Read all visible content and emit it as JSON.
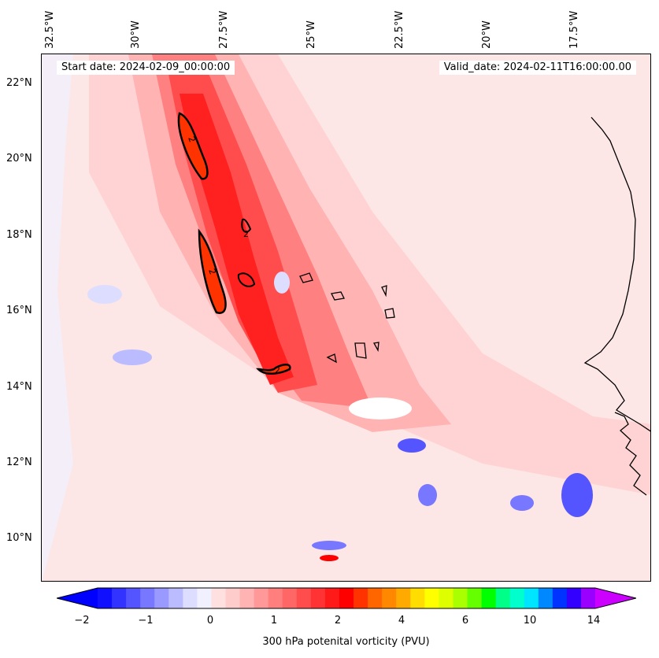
{
  "header": {
    "start_date": "Start date: 2024-02-09_00:00:00",
    "valid_date": "Valid_date: 2024-02-11T16:00:00.00"
  },
  "axes": {
    "lon_labels": [
      "32.5°W",
      "30°W",
      "27.5°W",
      "25°W",
      "22.5°W",
      "20°W",
      "17.5°W"
    ],
    "lat_labels": [
      "22°N",
      "20°N",
      "18°N",
      "16°N",
      "14°N",
      "12°N",
      "10°N"
    ]
  },
  "contour_label": "2",
  "colorbar": {
    "title": "300 hPa potenital vorticity (PVU)",
    "ticks": [
      "−2",
      "−1",
      "0",
      "1",
      "2",
      "4",
      "6",
      "10",
      "14"
    ],
    "colors": [
      "#1010ff",
      "#3333ff",
      "#5555ff",
      "#7777ff",
      "#9999ff",
      "#bbbbff",
      "#ddddff",
      "#f0f0ff",
      "#ffe0e0",
      "#ffcccc",
      "#ffb3b3",
      "#ff9999",
      "#ff7f7f",
      "#ff6666",
      "#ff4c4c",
      "#ff3333",
      "#ff1a1a",
      "#ff0000",
      "#ff3300",
      "#ff6600",
      "#ff8800",
      "#ffaa00",
      "#ffdd00",
      "#ffff00",
      "#ddff00",
      "#aaff00",
      "#66ff00",
      "#00ff00",
      "#00ff88",
      "#00ffcc",
      "#00e5ff",
      "#0088ff",
      "#0033ff",
      "#3300ff",
      "#9900ff"
    ],
    "under_color": "#0000ff",
    "over_color": "#cc00ff"
  },
  "colors": {
    "background_pv": "#fde6e6",
    "coast": "#000000"
  }
}
